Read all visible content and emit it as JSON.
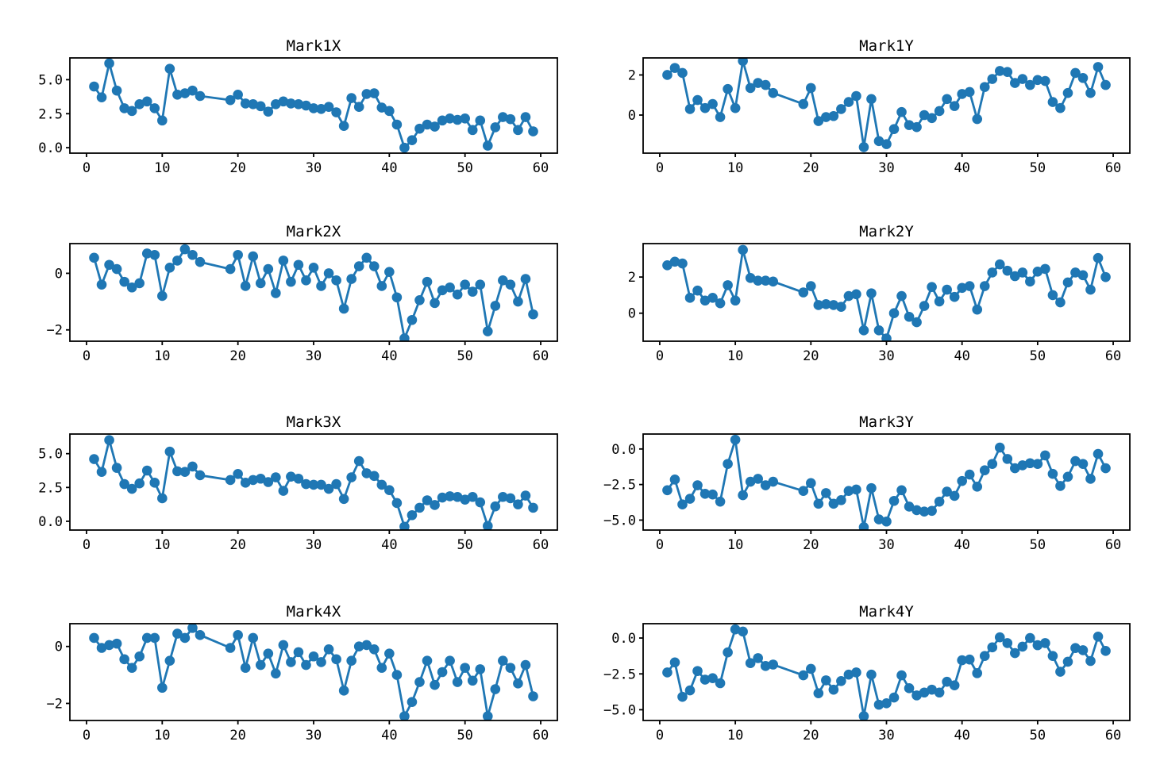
{
  "figure": {
    "background": "#ffffff"
  },
  "style": {
    "line_color": "#1f77b4",
    "marker_color": "#1f77b4",
    "axis_color": "#000000"
  },
  "shared": {
    "x": [
      1,
      2,
      3,
      4,
      5,
      6,
      7,
      8,
      9,
      10,
      11,
      12,
      13,
      14,
      15,
      19,
      20,
      21,
      22,
      23,
      24,
      25,
      26,
      27,
      28,
      29,
      30,
      31,
      32,
      33,
      34,
      35,
      36,
      37,
      38,
      39,
      40,
      41,
      42,
      43,
      44,
      45,
      46,
      47,
      48,
      49,
      50,
      51,
      52,
      53,
      54,
      55,
      56,
      57,
      58,
      59
    ],
    "xticks": [
      0,
      10,
      20,
      30,
      40,
      50,
      60
    ],
    "xtick_labels": [
      "0",
      "10",
      "20",
      "30",
      "40",
      "50",
      "60"
    ],
    "xlim": [
      -2.2,
      62.2
    ]
  },
  "chart_data": [
    {
      "type": "line",
      "title": "Mark1X",
      "ylim": [
        -0.4,
        6.6
      ],
      "yticks": [
        0,
        2.5,
        5
      ],
      "ytick_labels": [
        "0.0",
        "2.5",
        "5.0"
      ],
      "grid": false,
      "values": [
        4.5,
        3.7,
        6.2,
        4.2,
        2.9,
        2.7,
        3.2,
        3.4,
        2.9,
        2.0,
        5.8,
        3.9,
        4.0,
        4.2,
        3.8,
        3.5,
        3.9,
        3.25,
        3.2,
        3.05,
        2.65,
        3.2,
        3.4,
        3.25,
        3.2,
        3.1,
        2.9,
        2.85,
        3.0,
        2.6,
        1.6,
        3.65,
        3.0,
        3.95,
        4.0,
        2.95,
        2.7,
        1.7,
        0.0,
        0.55,
        1.4,
        1.7,
        1.55,
        2.0,
        2.15,
        2.05,
        2.15,
        1.3,
        2.0,
        0.15,
        1.5,
        2.25,
        2.1,
        1.3,
        2.25,
        1.2
      ]
    },
    {
      "type": "line",
      "title": "Mark1Y",
      "ylim": [
        -1.9,
        2.85
      ],
      "yticks": [
        0,
        2
      ],
      "ytick_labels": [
        "0",
        "2"
      ],
      "grid": false,
      "values": [
        2.0,
        2.35,
        2.1,
        0.3,
        0.75,
        0.35,
        0.55,
        -0.1,
        1.3,
        0.35,
        2.7,
        1.35,
        1.6,
        1.5,
        1.1,
        0.55,
        1.35,
        -0.3,
        -0.1,
        -0.05,
        0.3,
        0.65,
        0.95,
        -1.6,
        0.8,
        -1.3,
        -1.45,
        -0.7,
        0.15,
        -0.5,
        -0.6,
        0.0,
        -0.15,
        0.2,
        0.8,
        0.45,
        1.05,
        1.15,
        -0.2,
        1.4,
        1.8,
        2.2,
        2.15,
        1.6,
        1.8,
        1.5,
        1.75,
        1.7,
        0.65,
        0.35,
        1.1,
        2.1,
        1.85,
        1.1,
        2.4,
        1.5
      ]
    },
    {
      "type": "line",
      "title": "Mark2X",
      "ylim": [
        -2.4,
        1.05
      ],
      "yticks": [
        -2,
        0
      ],
      "ytick_labels": [
        "−2",
        "0"
      ],
      "grid": false,
      "values": [
        0.55,
        -0.4,
        0.3,
        0.15,
        -0.3,
        -0.5,
        -0.35,
        0.7,
        0.65,
        -0.8,
        0.2,
        0.45,
        0.85,
        0.65,
        0.4,
        0.15,
        0.65,
        -0.45,
        0.6,
        -0.35,
        0.15,
        -0.7,
        0.45,
        -0.3,
        0.3,
        -0.25,
        0.2,
        -0.45,
        0.0,
        -0.25,
        -1.25,
        -0.2,
        0.25,
        0.55,
        0.25,
        -0.45,
        0.05,
        -0.85,
        -2.3,
        -1.65,
        -0.95,
        -0.3,
        -1.05,
        -0.6,
        -0.5,
        -0.75,
        -0.4,
        -0.65,
        -0.4,
        -2.05,
        -1.15,
        -0.25,
        -0.4,
        -1.0,
        -0.2,
        -1.45
      ]
    },
    {
      "type": "line",
      "title": "Mark2Y",
      "ylim": [
        -1.55,
        3.85
      ],
      "yticks": [
        0,
        2
      ],
      "ytick_labels": [
        "0",
        "2"
      ],
      "grid": false,
      "values": [
        2.65,
        2.85,
        2.75,
        0.85,
        1.25,
        0.7,
        0.85,
        0.55,
        1.55,
        0.7,
        3.5,
        1.95,
        1.8,
        1.8,
        1.75,
        1.15,
        1.5,
        0.45,
        0.5,
        0.45,
        0.35,
        0.95,
        1.05,
        -0.95,
        1.1,
        -0.95,
        -1.4,
        0.0,
        0.95,
        -0.2,
        -0.5,
        0.4,
        1.45,
        0.65,
        1.3,
        0.9,
        1.4,
        1.5,
        0.2,
        1.5,
        2.25,
        2.7,
        2.35,
        2.05,
        2.25,
        1.75,
        2.3,
        2.45,
        1.0,
        0.6,
        1.7,
        2.25,
        2.1,
        1.3,
        3.05,
        2.0
      ]
    },
    {
      "type": "line",
      "title": "Mark3X",
      "ylim": [
        -0.65,
        6.45
      ],
      "yticks": [
        0,
        2.5,
        5
      ],
      "ytick_labels": [
        "0.0",
        "2.5",
        "5.0"
      ],
      "grid": false,
      "values": [
        4.6,
        3.65,
        6.0,
        3.95,
        2.75,
        2.4,
        2.8,
        3.75,
        2.85,
        1.7,
        5.15,
        3.7,
        3.65,
        4.05,
        3.4,
        3.05,
        3.5,
        2.85,
        3.05,
        3.15,
        2.9,
        3.25,
        2.25,
        3.3,
        3.15,
        2.75,
        2.7,
        2.7,
        2.4,
        2.75,
        1.65,
        3.25,
        4.45,
        3.55,
        3.35,
        2.7,
        2.3,
        1.35,
        -0.4,
        0.45,
        1.0,
        1.55,
        1.2,
        1.75,
        1.85,
        1.8,
        1.6,
        1.8,
        1.4,
        -0.35,
        1.1,
        1.8,
        1.7,
        1.25,
        1.9,
        1.0
      ]
    },
    {
      "type": "line",
      "title": "Mark3Y",
      "ylim": [
        -5.7,
        1.05
      ],
      "yticks": [
        -5,
        -2.5,
        0
      ],
      "ytick_labels": [
        "−5.0",
        "−2.5",
        "0.0"
      ],
      "grid": false,
      "values": [
        -2.9,
        -2.15,
        -3.9,
        -3.5,
        -2.55,
        -3.15,
        -3.2,
        -3.7,
        -1.05,
        0.65,
        -3.25,
        -2.3,
        -2.1,
        -2.55,
        -2.3,
        -2.95,
        -2.4,
        -3.85,
        -3.1,
        -3.85,
        -3.6,
        -2.95,
        -2.85,
        -5.5,
        -2.75,
        -4.95,
        -5.1,
        -3.65,
        -2.9,
        -4.05,
        -4.3,
        -4.4,
        -4.35,
        -3.7,
        -3.0,
        -3.3,
        -2.25,
        -1.8,
        -2.65,
        -1.5,
        -1.05,
        0.1,
        -0.7,
        -1.35,
        -1.15,
        -1.0,
        -1.05,
        -0.45,
        -1.75,
        -2.6,
        -1.95,
        -0.85,
        -1.05,
        -2.1,
        -0.35,
        -1.35
      ]
    },
    {
      "type": "line",
      "title": "Mark4X",
      "ylim": [
        -2.6,
        0.8
      ],
      "yticks": [
        -2,
        0
      ],
      "ytick_labels": [
        "−2",
        "0"
      ],
      "grid": false,
      "values": [
        0.3,
        -0.05,
        0.05,
        0.1,
        -0.45,
        -0.75,
        -0.35,
        0.3,
        0.3,
        -1.45,
        -0.5,
        0.45,
        0.3,
        0.65,
        0.4,
        -0.05,
        0.4,
        -0.75,
        0.3,
        -0.65,
        -0.25,
        -0.95,
        0.05,
        -0.55,
        -0.2,
        -0.65,
        -0.35,
        -0.55,
        -0.1,
        -0.45,
        -1.55,
        -0.5,
        0.0,
        0.05,
        -0.1,
        -0.75,
        -0.25,
        -1.0,
        -2.45,
        -1.95,
        -1.25,
        -0.5,
        -1.35,
        -0.9,
        -0.5,
        -1.25,
        -0.75,
        -1.2,
        -0.8,
        -2.45,
        -1.5,
        -0.5,
        -0.75,
        -1.3,
        -0.65,
        -1.75
      ]
    },
    {
      "type": "line",
      "title": "Mark4Y",
      "ylim": [
        -5.75,
        1.0
      ],
      "yticks": [
        -5,
        -2.5,
        0
      ],
      "ytick_labels": [
        "−5.0",
        "−2.5",
        "0.0"
      ],
      "grid": false,
      "values": [
        -2.4,
        -1.7,
        -4.1,
        -3.65,
        -2.3,
        -2.9,
        -2.8,
        -3.15,
        -1.0,
        0.6,
        0.45,
        -1.75,
        -1.4,
        -1.95,
        -1.85,
        -2.6,
        -2.15,
        -3.85,
        -2.95,
        -3.6,
        -3.0,
        -2.55,
        -2.4,
        -5.45,
        -2.55,
        -4.65,
        -4.55,
        -4.15,
        -2.6,
        -3.5,
        -4.0,
        -3.8,
        -3.6,
        -3.8,
        -3.05,
        -3.3,
        -1.55,
        -1.5,
        -2.45,
        -1.25,
        -0.65,
        0.05,
        -0.35,
        -1.05,
        -0.6,
        0.0,
        -0.5,
        -0.35,
        -1.25,
        -2.35,
        -1.65,
        -0.7,
        -0.85,
        -1.6,
        0.1,
        -0.9
      ]
    }
  ]
}
